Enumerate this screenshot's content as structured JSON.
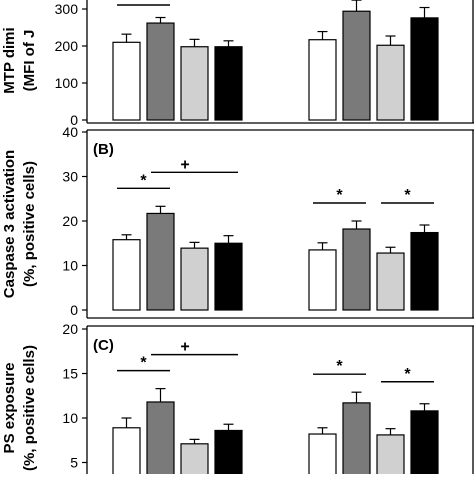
{
  "chart_data": [
    {
      "type": "bar",
      "panel_label": "",
      "ylabel_lines": [
        "MTP dimi",
        "(MFI of J"
      ],
      "ylim": [
        0,
        300
      ],
      "yticks": [
        0,
        100,
        200,
        300
      ],
      "ytick_labels": [
        "0",
        "100",
        "200",
        "300"
      ],
      "groups": [
        {
          "values": [
            210,
            262,
            198,
            198
          ],
          "errors": [
            22,
            15,
            20,
            16
          ]
        },
        {
          "values": [
            217,
            294,
            202,
            276
          ],
          "errors": [
            22,
            30,
            25,
            28
          ]
        }
      ],
      "annotations": [
        {
          "group": 0,
          "from": 0,
          "to": 1,
          "symbol": ""
        }
      ]
    },
    {
      "type": "bar",
      "panel_label": "(B)",
      "ylabel_lines": [
        "Caspase 3 activation",
        "(%, positive cells)"
      ],
      "ylim": [
        0,
        40
      ],
      "yticks": [
        0,
        10,
        20,
        30,
        40
      ],
      "ytick_labels": [
        "0",
        "10",
        "20",
        "30",
        "40"
      ],
      "groups": [
        {
          "values": [
            15.8,
            21.7,
            13.9,
            15.0
          ],
          "errors": [
            1.1,
            1.6,
            1.3,
            1.7
          ]
        },
        {
          "values": [
            13.5,
            18.2,
            12.8,
            17.4
          ],
          "errors": [
            1.6,
            1.8,
            1.3,
            1.7
          ]
        }
      ],
      "annotations": [
        {
          "group": 0,
          "from": 0,
          "to": 1,
          "symbol": "*"
        },
        {
          "group": 0,
          "from": 1,
          "to": 3,
          "symbol": "+"
        },
        {
          "group": 1,
          "from": 0,
          "to": 1,
          "symbol": "*"
        },
        {
          "group": 1,
          "from": 2,
          "to": 3,
          "symbol": "*"
        }
      ]
    },
    {
      "type": "bar",
      "panel_label": "(C)",
      "ylabel_lines": [
        "PS exposure",
        "(%, positive cells)"
      ],
      "ylim": [
        0,
        20
      ],
      "yticks": [
        5,
        10,
        15,
        20
      ],
      "ytick_labels": [
        "5",
        "10",
        "15",
        "20"
      ],
      "groups": [
        {
          "values": [
            8.9,
            11.8,
            7.1,
            8.6
          ],
          "errors": [
            1.1,
            1.5,
            0.5,
            0.7
          ]
        },
        {
          "values": [
            8.2,
            11.7,
            8.1,
            10.8
          ],
          "errors": [
            0.7,
            1.2,
            0.7,
            0.8
          ]
        }
      ],
      "annotations": [
        {
          "group": 0,
          "from": 0,
          "to": 1,
          "symbol": "*"
        },
        {
          "group": 0,
          "from": 1,
          "to": 3,
          "symbol": "+"
        },
        {
          "group": 1,
          "from": 0,
          "to": 1,
          "symbol": "*"
        },
        {
          "group": 1,
          "from": 2,
          "to": 3,
          "symbol": "*"
        }
      ]
    }
  ],
  "bar_colors": [
    "#ffffff",
    "#7a7a7a",
    "#d0d0d0",
    "#000000"
  ]
}
